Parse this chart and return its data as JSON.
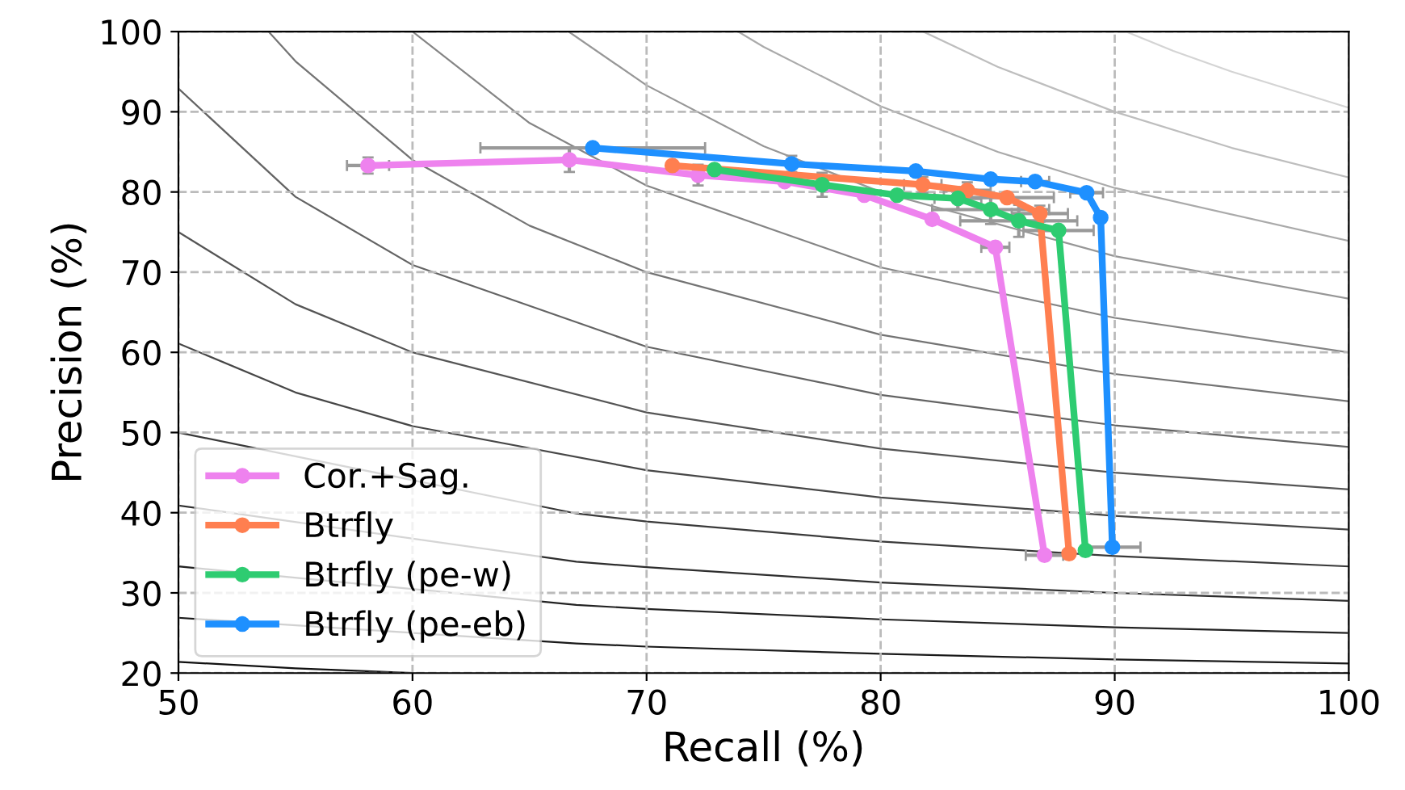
{
  "chart_data": {
    "type": "line",
    "xlabel": "Recall (%)",
    "ylabel": "Precision (%)",
    "xlim": [
      50,
      100
    ],
    "ylim": [
      20,
      100
    ],
    "xticks": [
      50,
      60,
      70,
      80,
      90,
      100
    ],
    "yticks": [
      20,
      30,
      40,
      50,
      60,
      70,
      80,
      90,
      100
    ],
    "grid": true,
    "legend": "bottom left",
    "marker": "circle",
    "line_style": "solid",
    "series": [
      {
        "color": "#111111",
        "marker": "none",
        "x": [
          50,
          55,
          60
        ],
        "values": [
          21.4,
          20.6,
          20.0
        ]
      },
      {
        "color": "#1a1a1a",
        "marker": "none",
        "x": [
          50,
          67,
          70,
          80,
          90,
          100
        ],
        "values": [
          26.9,
          23.7,
          23.3,
          22.4,
          21.7,
          21.2
        ]
      },
      {
        "color": "#222222",
        "marker": "none",
        "x": [
          50,
          67,
          70,
          80,
          90,
          100
        ],
        "values": [
          33.3,
          28.5,
          28.0,
          26.7,
          25.7,
          25.0
        ]
      },
      {
        "color": "#2e2e2e",
        "marker": "none",
        "x": [
          50,
          67,
          70,
          80,
          90,
          100
        ],
        "values": [
          40.9,
          33.9,
          33.2,
          31.3,
          30.0,
          29.0
        ]
      },
      {
        "color": "#3a3a3a",
        "marker": "none",
        "x": [
          50,
          67,
          70,
          80,
          90,
          100
        ],
        "values": [
          50.0,
          39.9,
          38.9,
          36.4,
          34.6,
          33.3
        ]
      },
      {
        "color": "#474747",
        "marker": "none",
        "x": [
          50,
          55,
          60,
          70,
          80,
          90,
          100
        ],
        "values": [
          61.1,
          55.0,
          50.8,
          45.3,
          41.9,
          39.6,
          37.9
        ]
      },
      {
        "color": "#555555",
        "marker": "none",
        "x": [
          50,
          55,
          60,
          70,
          80,
          90,
          100
        ],
        "values": [
          75.0,
          66.0,
          60.0,
          52.5,
          48.0,
          45.0,
          42.9
        ]
      },
      {
        "color": "#646464",
        "marker": "none",
        "x": [
          50,
          55,
          60,
          70,
          80,
          90,
          100
        ],
        "values": [
          92.9,
          79.4,
          70.9,
          60.7,
          54.7,
          50.9,
          48.2
        ]
      },
      {
        "color": "#747474",
        "marker": "none",
        "x": [
          53.85,
          55,
          60,
          65,
          70,
          80,
          90,
          100
        ],
        "values": [
          100,
          96.3,
          84.0,
          75.8,
          70.0,
          62.2,
          57.3,
          53.9
        ]
      },
      {
        "color": "#858585",
        "marker": "none",
        "x": [
          60,
          65,
          70,
          80,
          90,
          100
        ],
        "values": [
          100,
          88.6,
          80.8,
          70.6,
          64.3,
          60.0
        ]
      },
      {
        "color": "#979797",
        "marker": "none",
        "x": [
          66.67,
          70,
          75,
          80,
          90,
          100
        ],
        "values": [
          100,
          93.3,
          85.7,
          80.0,
          72.0,
          66.7
        ]
      },
      {
        "color": "#aaaaaa",
        "marker": "none",
        "x": [
          73.91,
          75,
          80,
          85,
          90,
          100
        ],
        "values": [
          100,
          98.1,
          90.7,
          85.0,
          80.5,
          73.9
        ]
      },
      {
        "color": "#bebebe",
        "marker": "none",
        "x": [
          81.82,
          85,
          90,
          95,
          100
        ],
        "values": [
          100,
          95.6,
          90.0,
          85.5,
          81.8
        ]
      },
      {
        "color": "#d4d4d4",
        "marker": "none",
        "x": [
          90.48,
          92.5,
          95,
          100
        ],
        "values": [
          100,
          97.6,
          95.0,
          90.5
        ]
      },
      {
        "name": "Cor.+Sag.",
        "color": "#ee82ee",
        "x": [
          58.1,
          66.7,
          72.2,
          75.9,
          79.3,
          82.2,
          84.9,
          87.0
        ],
        "values": [
          83.3,
          84.0,
          82.1,
          81.3,
          79.6,
          76.6,
          73.1,
          34.7
        ],
        "errors": [
          1.0,
          1.5,
          1.3,
          null,
          null,
          null,
          null,
          null
        ],
        "xerrors": [
          0.9,
          null,
          null,
          null,
          null,
          null,
          0.6,
          0.8
        ]
      },
      {
        "name": "Btrfly",
        "color": "#ff7f50",
        "x": [
          71.1,
          81.8,
          83.7,
          85.4,
          86.8,
          88.05
        ],
        "values": [
          83.3,
          80.9,
          80.2,
          79.3,
          77.3,
          34.9
        ],
        "errors": [
          null,
          1.0,
          1.0,
          null,
          1.0,
          null
        ],
        "xerrors": [
          null,
          0.8,
          1.0,
          2.0,
          1.2,
          null
        ]
      },
      {
        "name": "Btrfly (pe-w)",
        "color": "#2ecc71",
        "x": [
          72.9,
          77.5,
          80.7,
          83.3,
          84.7,
          85.9,
          87.6,
          88.75
        ],
        "values": [
          82.8,
          80.9,
          79.6,
          79.2,
          77.8,
          76.4,
          75.2,
          35.3
        ],
        "errors": [
          null,
          1.5,
          null,
          1.4,
          1.8,
          2.0,
          null,
          null
        ],
        "xerrors": [
          null,
          null,
          null,
          1.0,
          2.5,
          2.5,
          1.5,
          null
        ]
      },
      {
        "name": "Btrfly (pe-eb)",
        "color": "#1e90ff",
        "x": [
          67.7,
          76.2,
          81.5,
          84.7,
          86.6,
          88.8,
          89.4,
          89.9
        ],
        "values": [
          85.5,
          83.5,
          82.6,
          81.6,
          81.3,
          79.9,
          76.8,
          35.7
        ],
        "errors": [
          null,
          1.0,
          null,
          null,
          null,
          null,
          null,
          null
        ],
        "xerrors": [
          4.8,
          null,
          null,
          null,
          0.6,
          0.7,
          null,
          1.2
        ]
      }
    ]
  }
}
